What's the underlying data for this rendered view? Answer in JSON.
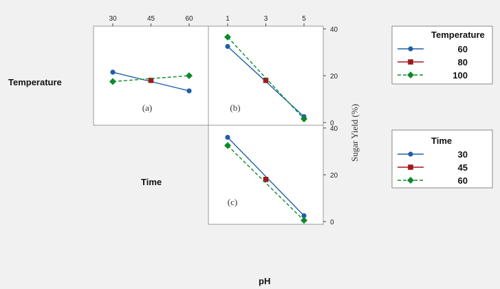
{
  "row_labels": [
    "Temperature",
    "Time"
  ],
  "bottom_label": "pH",
  "y_axis_label": "Sugar Yield (%)",
  "chart_data": [
    {
      "type": "line",
      "panel": "(a)",
      "x_factor": "Time",
      "x": [
        30,
        45,
        60
      ],
      "x_ticks": [
        "30",
        "45",
        "60"
      ],
      "ylim": [
        0,
        40
      ],
      "legend_group": "Time",
      "series": [
        {
          "name": "30",
          "x": [
            30
          ],
          "values": [
            21.5
          ]
        },
        {
          "name": "45",
          "x": [
            45
          ],
          "values": [
            18
          ]
        },
        {
          "name": "60",
          "x": [
            60
          ],
          "values": [
            20
          ]
        }
      ],
      "trace_note": "",
      "traces": [
        {
          "legend": "Temperature",
          "name": "60",
          "x": [
            30,
            60
          ],
          "values": [
            21.5,
            13.5
          ]
        },
        {
          "legend": "Temperature",
          "name": "80",
          "x": [
            45
          ],
          "values": [
            18
          ]
        },
        {
          "legend": "Temperature",
          "name": "100",
          "x": [
            30,
            60
          ],
          "values": [
            17.5,
            20
          ]
        }
      ]
    },
    {
      "type": "line",
      "panel": "(b)",
      "x_factor": "pH",
      "x": [
        1,
        3,
        5
      ],
      "x_ticks": [
        "1",
        "3",
        "5"
      ],
      "ylim": [
        0,
        40
      ],
      "y_ticks": [
        "0",
        "20",
        "40"
      ],
      "legend_group": "Temperature",
      "series": [
        {
          "name": "60",
          "x": [
            1,
            5
          ],
          "values": [
            32.5,
            2.5
          ]
        },
        {
          "name": "80",
          "x": [
            3
          ],
          "values": [
            18
          ]
        },
        {
          "name": "100",
          "x": [
            1,
            5
          ],
          "values": [
            36.5,
            1.5
          ]
        }
      ]
    },
    {
      "type": "line",
      "panel": "(c)",
      "x_factor": "pH",
      "x": [
        1,
        3,
        5
      ],
      "ylim": [
        0,
        40
      ],
      "y_ticks": [
        "0",
        "20",
        "40"
      ],
      "legend_group": "Time",
      "series": [
        {
          "name": "30",
          "x": [
            1,
            5
          ],
          "values": [
            36,
            2.5
          ]
        },
        {
          "name": "45",
          "x": [
            3
          ],
          "values": [
            18
          ]
        },
        {
          "name": "60",
          "x": [
            1,
            5
          ],
          "values": [
            32.5,
            0.5
          ]
        }
      ]
    }
  ],
  "legends": [
    {
      "title": "Temperature",
      "entries": [
        {
          "name": "60",
          "color": "#1f5fa8",
          "marker": "circle",
          "dash": "solid"
        },
        {
          "name": "80",
          "color": "#a3171c",
          "marker": "square",
          "dash": "solid"
        },
        {
          "name": "100",
          "color": "#0c8a2a",
          "marker": "diamond",
          "dash": "dashed"
        }
      ]
    },
    {
      "title": "Time",
      "entries": [
        {
          "name": "30",
          "color": "#1f5fa8",
          "marker": "circle",
          "dash": "solid"
        },
        {
          "name": "45",
          "color": "#a3171c",
          "marker": "square",
          "dash": "solid"
        },
        {
          "name": "60",
          "color": "#0c8a2a",
          "marker": "diamond",
          "dash": "dashed"
        }
      ]
    }
  ]
}
